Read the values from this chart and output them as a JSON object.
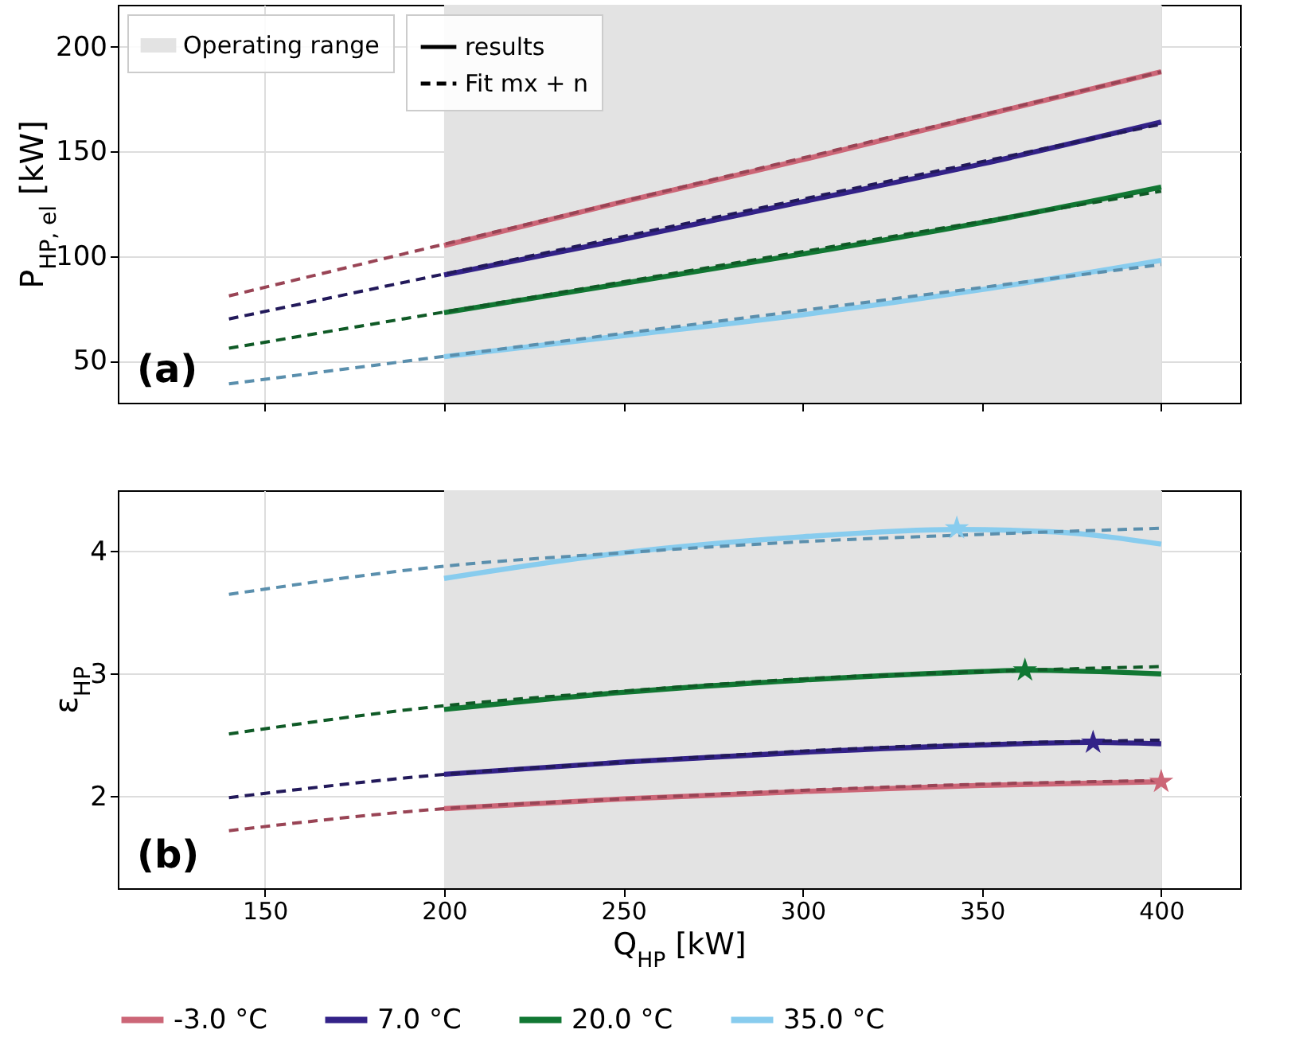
{
  "chart_data": [
    {
      "type": "line",
      "ylabel": "P$_{HP, el}$ [kW]",
      "annotations": [
        "(a)",
        "results",
        "Fit mx + n"
      ],
      "xlim": [
        109,
        422
      ],
      "xticks": [
        150,
        200,
        250,
        300,
        350,
        400
      ],
      "ylim": [
        30,
        220
      ],
      "yticks": [
        50,
        100,
        150,
        200
      ],
      "tick_labels": "y",
      "grid": true,
      "legend": "top left",
      "bands": [
        {
          "axis": "x",
          "from": 200,
          "to": 400,
          "label": "Operating range",
          "color": "#e3e3e3"
        }
      ],
      "series": [
        {
          "color": "#cc6677",
          "line_style": "solid",
          "x": [
            200,
            250,
            300,
            350,
            400
          ],
          "values": [
            105,
            126,
            146,
            167,
            188
          ]
        },
        {
          "color": "#332288",
          "line_style": "solid",
          "x": [
            200,
            250,
            300,
            350,
            400
          ],
          "values": [
            91,
            108,
            126,
            144,
            164
          ]
        },
        {
          "color": "#117733",
          "line_style": "solid",
          "x": [
            200,
            250,
            300,
            350,
            400
          ],
          "values": [
            73,
            87,
            101,
            116,
            133
          ]
        },
        {
          "color": "#88ccee",
          "line_style": "solid",
          "x": [
            200,
            250,
            300,
            350,
            400
          ],
          "values": [
            52,
            62,
            72,
            84,
            98
          ]
        },
        {
          "color": "#994455",
          "line_style": "dashed",
          "x": [
            140,
            400
          ],
          "values": [
            81,
            188
          ]
        },
        {
          "color": "#22195a",
          "line_style": "dashed",
          "x": [
            140,
            400
          ],
          "values": [
            70,
            163
          ]
        },
        {
          "color": "#0f5a26",
          "line_style": "dashed",
          "x": [
            140,
            400
          ],
          "values": [
            56,
            131
          ]
        },
        {
          "color": "#5a8fad",
          "line_style": "dashed",
          "x": [
            140,
            400
          ],
          "values": [
            39,
            96
          ]
        }
      ]
    },
    {
      "type": "line",
      "xlabel": "Q$_{HP}$ [kW]",
      "ylabel": "ε$_{HP}$",
      "annotations": [
        "(b)"
      ],
      "xlim": [
        109,
        422
      ],
      "xticks": [
        150,
        200,
        250,
        300,
        350,
        400
      ],
      "ylim": [
        1.25,
        4.5
      ],
      "yticks": [
        2,
        3,
        4
      ],
      "grid": true,
      "legend": "bottom",
      "bands": [
        {
          "axis": "x",
          "from": 200,
          "to": 400,
          "color": "#e3e3e3"
        }
      ],
      "series": [
        {
          "name": "-3.0 °C",
          "color": "#cc6677",
          "line_style": "solid",
          "x": [
            200,
            250,
            300,
            350,
            400
          ],
          "values": [
            1.9,
            1.98,
            2.04,
            2.09,
            2.12
          ]
        },
        {
          "name": "7.0 °C",
          "color": "#332288",
          "line_style": "solid",
          "x": [
            200,
            250,
            300,
            350,
            380,
            400
          ],
          "values": [
            2.18,
            2.28,
            2.36,
            2.42,
            2.44,
            2.43
          ]
        },
        {
          "name": "20.0 °C",
          "color": "#117733",
          "line_style": "solid",
          "x": [
            200,
            250,
            300,
            350,
            362,
            400
          ],
          "values": [
            2.71,
            2.85,
            2.95,
            3.02,
            3.03,
            3.0
          ]
        },
        {
          "name": "35.0 °C",
          "color": "#88ccee",
          "line_style": "solid",
          "x": [
            200,
            250,
            300,
            343,
            370,
            400
          ],
          "values": [
            3.78,
            3.99,
            4.12,
            4.18,
            4.16,
            4.06
          ]
        },
        {
          "color": "#994455",
          "line_style": "dashed",
          "x": [
            140,
            200,
            250,
            300,
            350,
            400
          ],
          "values": [
            1.72,
            1.9,
            1.98,
            2.05,
            2.1,
            2.13
          ]
        },
        {
          "color": "#22195a",
          "line_style": "dashed",
          "x": [
            140,
            200,
            250,
            300,
            350,
            400
          ],
          "values": [
            1.99,
            2.18,
            2.28,
            2.37,
            2.43,
            2.46
          ]
        },
        {
          "color": "#0f5a26",
          "line_style": "dashed",
          "x": [
            140,
            200,
            250,
            300,
            350,
            400
          ],
          "values": [
            2.51,
            2.74,
            2.86,
            2.96,
            3.02,
            3.06
          ]
        },
        {
          "color": "#5a8fad",
          "line_style": "dashed",
          "x": [
            140,
            200,
            250,
            300,
            350,
            400
          ],
          "values": [
            3.65,
            3.88,
            3.99,
            4.08,
            4.14,
            4.19
          ]
        },
        {
          "type": "scatter",
          "marker": "star",
          "color": "#cc6677",
          "x": [
            400
          ],
          "values": [
            2.12
          ]
        },
        {
          "type": "scatter",
          "marker": "star",
          "color": "#332288",
          "x": [
            381
          ],
          "values": [
            2.44
          ]
        },
        {
          "type": "scatter",
          "marker": "star",
          "color": "#117733",
          "x": [
            362
          ],
          "values": [
            3.03
          ]
        },
        {
          "type": "scatter",
          "marker": "star",
          "color": "#88ccee",
          "x": [
            343
          ],
          "values": [
            4.19
          ]
        }
      ]
    }
  ]
}
